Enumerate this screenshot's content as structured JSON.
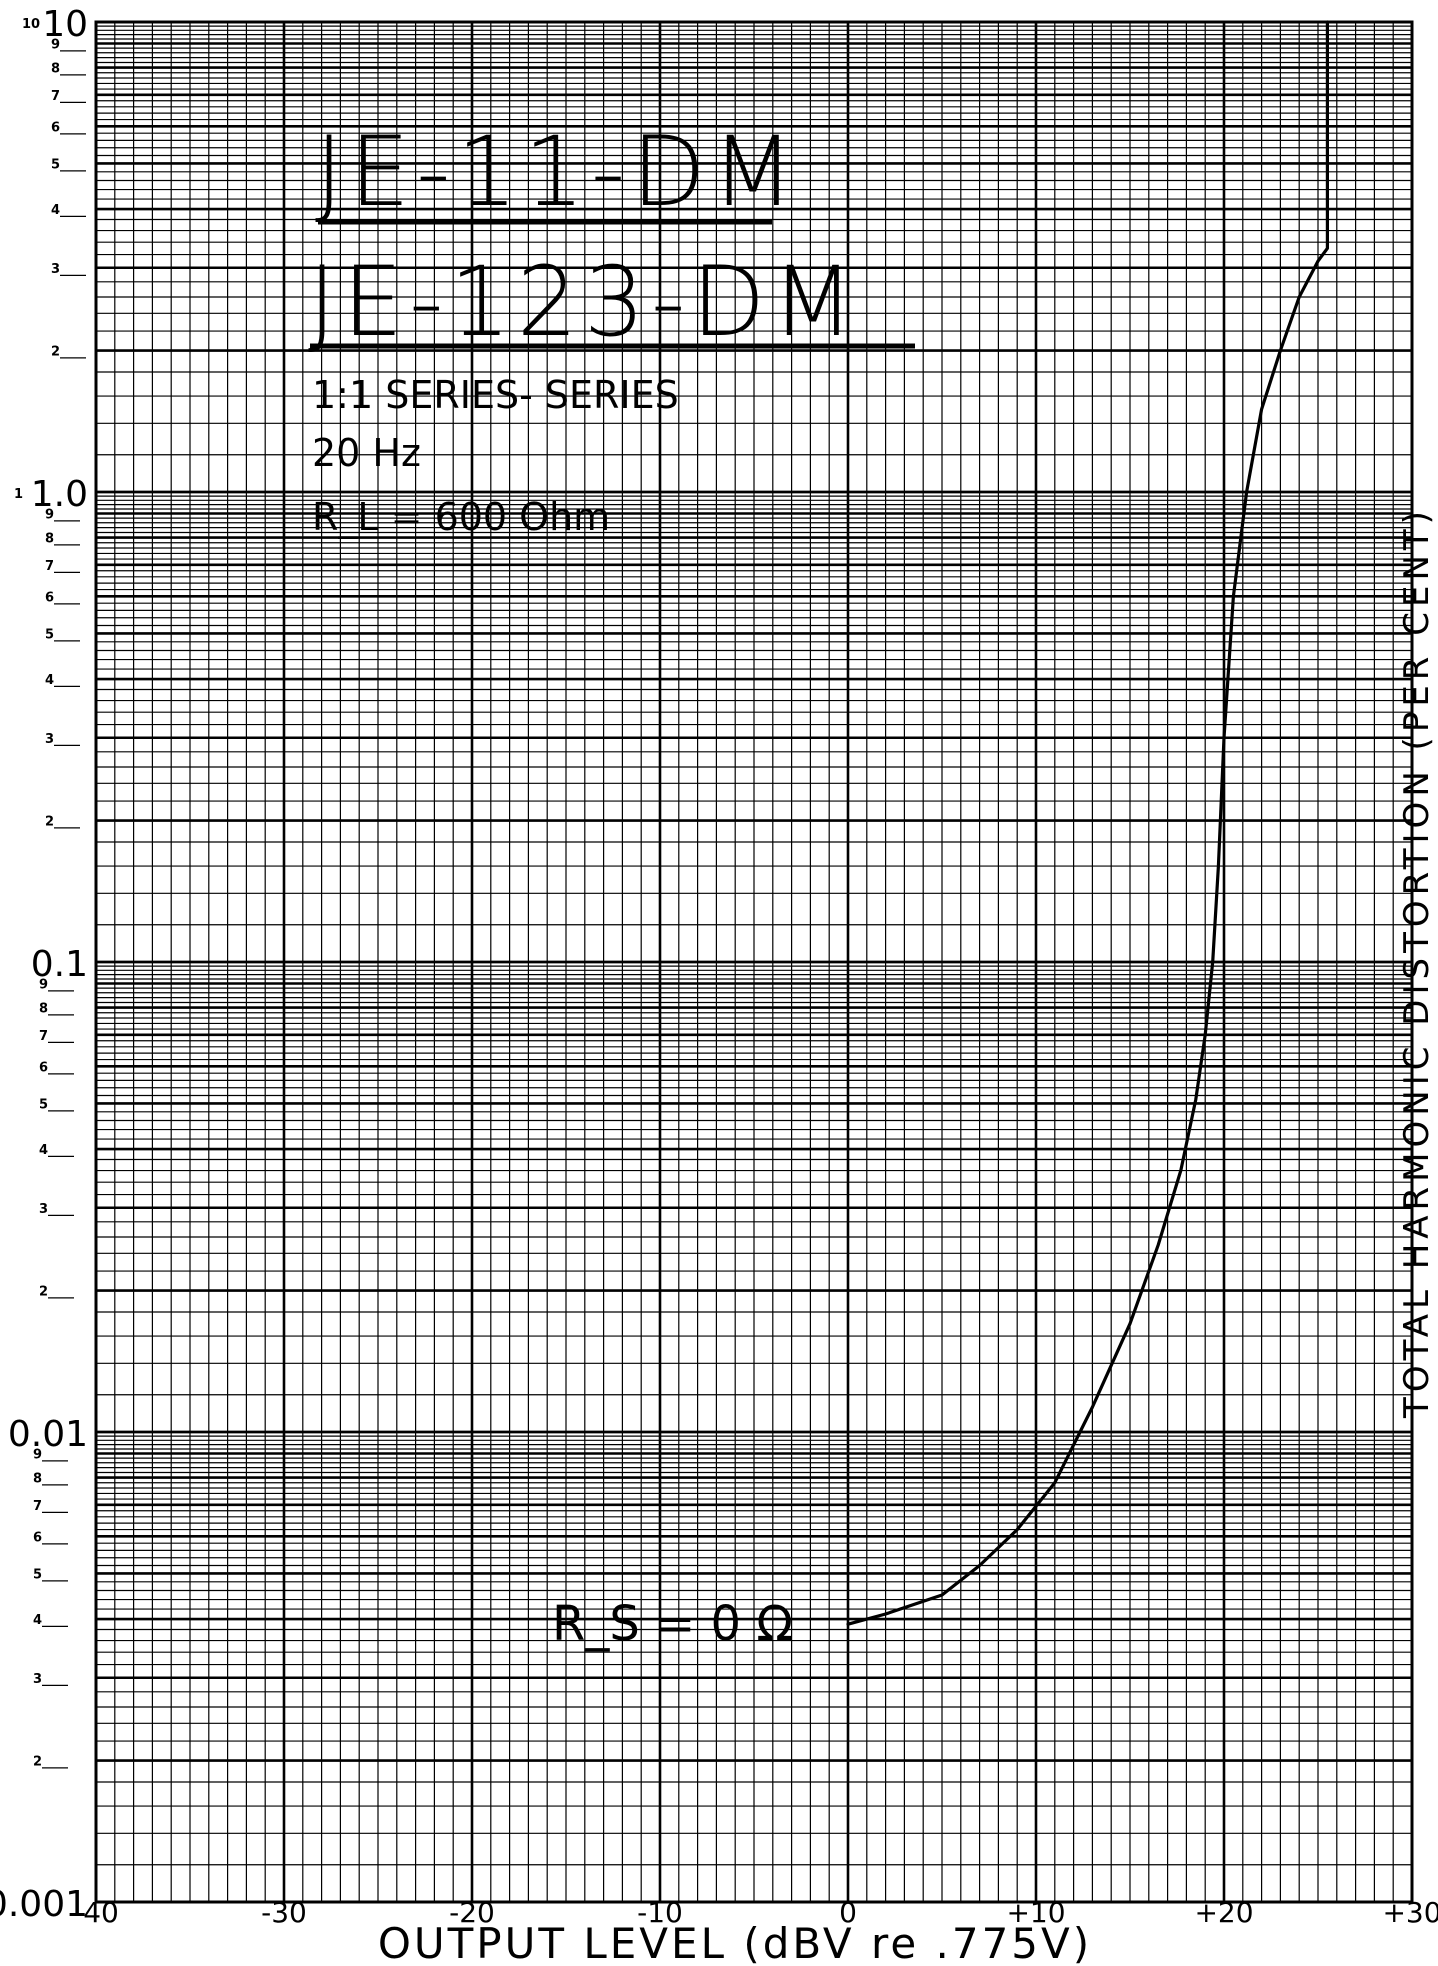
{
  "chart_data": {
    "type": "line",
    "title_lines": [
      "JE-11-DM",
      "JE-123-DM"
    ],
    "subtitle_lines": [
      "1:1  SERIES- SERIES",
      "20 Hz",
      "R_L = 600 Ohm"
    ],
    "xlabel": "OUTPUT  LEVEL  (dBV  re .775V)",
    "ylabel": "TOTAL  HARMONIC  DISTORTION  (PER CENT)",
    "xlim": [
      -40,
      30
    ],
    "ylim": [
      0.001,
      10
    ],
    "yscale": "log",
    "grid": true,
    "x_ticks": [
      {
        "value": -40,
        "label": "-40"
      },
      {
        "value": -30,
        "label": "-30"
      },
      {
        "value": -20,
        "label": "-20"
      },
      {
        "value": -10,
        "label": "-10"
      },
      {
        "value": 0,
        "label": "0"
      },
      {
        "value": 10,
        "label": "+10"
      },
      {
        "value": 20,
        "label": "+20"
      },
      {
        "value": 30,
        "label": "+30"
      }
    ],
    "y_major_labels": [
      {
        "value": 10,
        "label": "10"
      },
      {
        "value": 1,
        "label": "1.0"
      },
      {
        "value": 0.1,
        "label": "0.1"
      },
      {
        "value": 0.01,
        "label": "0.01"
      },
      {
        "value": 0.001,
        "label": "0.001"
      }
    ],
    "y_minor_labels": [
      "2",
      "3",
      "4",
      "5",
      "6",
      "7",
      "8",
      "9"
    ],
    "y_top_tiny_label": "10",
    "y_cycle_tiny_label": "1",
    "series": [
      {
        "name": "R_S = 0 Ω",
        "x": [
          0,
          2,
          5,
          7,
          9,
          11,
          13,
          15,
          16.5,
          17.7,
          18.5,
          19,
          19.4,
          19.7,
          20,
          20.5,
          21.2,
          22,
          23,
          24,
          25,
          25.5,
          25.5
        ],
        "y": [
          0.0039,
          0.0041,
          0.0045,
          0.0052,
          0.0062,
          0.0078,
          0.0113,
          0.017,
          0.025,
          0.036,
          0.051,
          0.07,
          0.1,
          0.16,
          0.3,
          0.6,
          1.0,
          1.5,
          2.0,
          2.6,
          3.1,
          3.3,
          10
        ]
      }
    ],
    "annotation": "R_S = 0 Ω"
  }
}
